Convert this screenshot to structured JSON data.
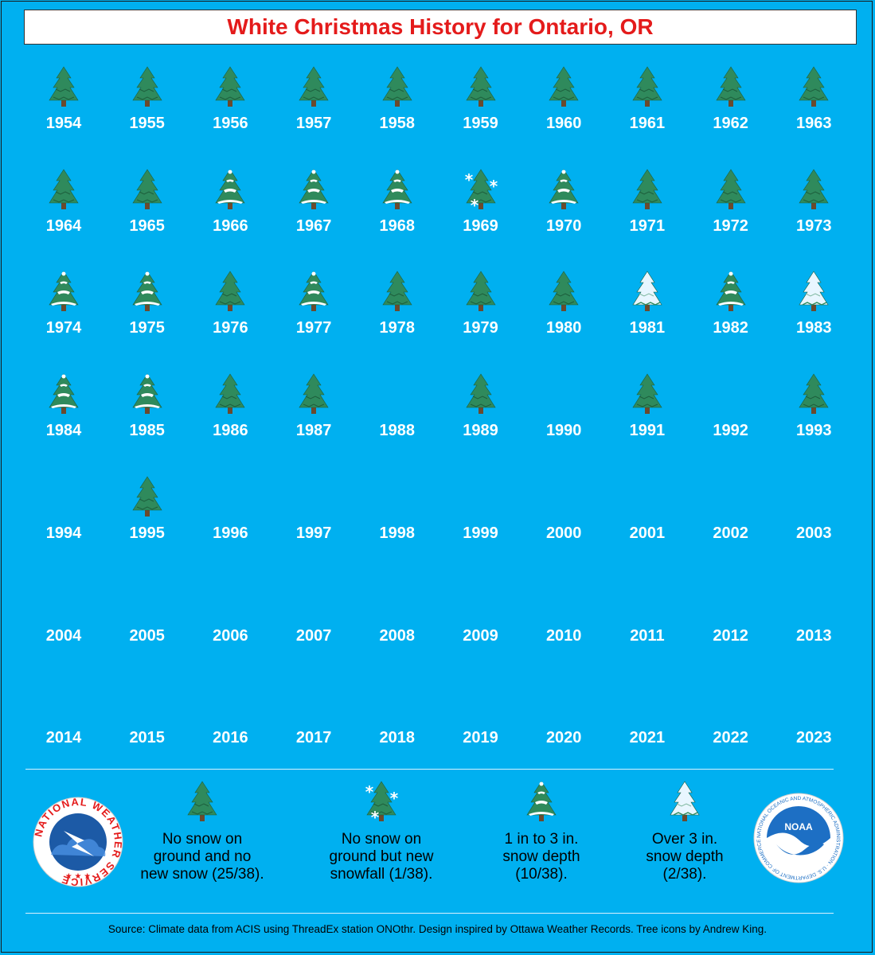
{
  "title": "White Christmas History for Ontario, OR",
  "colors": {
    "background": "#00b0f0",
    "title_text": "#e41b1b",
    "tree_green": "#2f8a5c",
    "snow": "#ffffff"
  },
  "chart_data": {
    "type": "table",
    "title": "White Christmas History for Ontario, OR",
    "columns": 10,
    "years": [
      {
        "year": "1954",
        "category": "none"
      },
      {
        "year": "1955",
        "category": "none"
      },
      {
        "year": "1956",
        "category": "none"
      },
      {
        "year": "1957",
        "category": "none"
      },
      {
        "year": "1958",
        "category": "none"
      },
      {
        "year": "1959",
        "category": "none"
      },
      {
        "year": "1960",
        "category": "none"
      },
      {
        "year": "1961",
        "category": "none"
      },
      {
        "year": "1962",
        "category": "none"
      },
      {
        "year": "1963",
        "category": "none"
      },
      {
        "year": "1964",
        "category": "none"
      },
      {
        "year": "1965",
        "category": "none"
      },
      {
        "year": "1966",
        "category": "depth_1_3"
      },
      {
        "year": "1967",
        "category": "depth_1_3"
      },
      {
        "year": "1968",
        "category": "depth_1_3"
      },
      {
        "year": "1969",
        "category": "new_snow"
      },
      {
        "year": "1970",
        "category": "depth_1_3"
      },
      {
        "year": "1971",
        "category": "none"
      },
      {
        "year": "1972",
        "category": "none"
      },
      {
        "year": "1973",
        "category": "none"
      },
      {
        "year": "1974",
        "category": "depth_1_3"
      },
      {
        "year": "1975",
        "category": "depth_1_3"
      },
      {
        "year": "1976",
        "category": "none"
      },
      {
        "year": "1977",
        "category": "depth_1_3"
      },
      {
        "year": "1978",
        "category": "none"
      },
      {
        "year": "1979",
        "category": "none"
      },
      {
        "year": "1980",
        "category": "none"
      },
      {
        "year": "1981",
        "category": "over_3"
      },
      {
        "year": "1982",
        "category": "depth_1_3"
      },
      {
        "year": "1983",
        "category": "over_3"
      },
      {
        "year": "1984",
        "category": "depth_1_3"
      },
      {
        "year": "1985",
        "category": "depth_1_3"
      },
      {
        "year": "1986",
        "category": "none"
      },
      {
        "year": "1987",
        "category": "none"
      },
      {
        "year": "1988",
        "category": "missing"
      },
      {
        "year": "1989",
        "category": "none"
      },
      {
        "year": "1990",
        "category": "missing"
      },
      {
        "year": "1991",
        "category": "none"
      },
      {
        "year": "1992",
        "category": "missing"
      },
      {
        "year": "1993",
        "category": "none"
      },
      {
        "year": "1994",
        "category": "missing"
      },
      {
        "year": "1995",
        "category": "none"
      },
      {
        "year": "1996",
        "category": "missing"
      },
      {
        "year": "1997",
        "category": "missing"
      },
      {
        "year": "1998",
        "category": "missing"
      },
      {
        "year": "1999",
        "category": "missing"
      },
      {
        "year": "2000",
        "category": "missing"
      },
      {
        "year": "2001",
        "category": "missing"
      },
      {
        "year": "2002",
        "category": "missing"
      },
      {
        "year": "2003",
        "category": "missing"
      },
      {
        "year": "2004",
        "category": "missing"
      },
      {
        "year": "2005",
        "category": "missing"
      },
      {
        "year": "2006",
        "category": "missing"
      },
      {
        "year": "2007",
        "category": "missing"
      },
      {
        "year": "2008",
        "category": "missing"
      },
      {
        "year": "2009",
        "category": "missing"
      },
      {
        "year": "2010",
        "category": "missing"
      },
      {
        "year": "2011",
        "category": "missing"
      },
      {
        "year": "2012",
        "category": "missing"
      },
      {
        "year": "2013",
        "category": "missing"
      },
      {
        "year": "2014",
        "category": "missing"
      },
      {
        "year": "2015",
        "category": "missing"
      },
      {
        "year": "2016",
        "category": "missing"
      },
      {
        "year": "2017",
        "category": "missing"
      },
      {
        "year": "2018",
        "category": "missing"
      },
      {
        "year": "2019",
        "category": "missing"
      },
      {
        "year": "2020",
        "category": "missing"
      },
      {
        "year": "2021",
        "category": "missing"
      },
      {
        "year": "2022",
        "category": "missing"
      },
      {
        "year": "2023",
        "category": "missing"
      }
    ],
    "legend": [
      {
        "category": "none",
        "label": "No snow on\nground and no\nnew snow (25/38)."
      },
      {
        "category": "new_snow",
        "label": "No snow on\nground but new\nsnowfall (1/38)."
      },
      {
        "category": "depth_1_3",
        "label": "1 in to 3 in.\nsnow depth\n(10/38)."
      },
      {
        "category": "over_3",
        "label": "Over 3 in.\nsnow depth\n(2/38)."
      }
    ]
  },
  "logos": {
    "nws": "NATIONAL WEATHER SERVICE",
    "noaa": "NOAA",
    "noaa_ring": "NATIONAL OCEANIC AND ATMOSPHERIC ADMINISTRATION · U.S. DEPARTMENT OF COMMERCE"
  },
  "source": "Source: Climate data from ACIS using ThreadEx station ONOthr. Design inspired by Ottawa Weather Records. Tree icons by Andrew King."
}
